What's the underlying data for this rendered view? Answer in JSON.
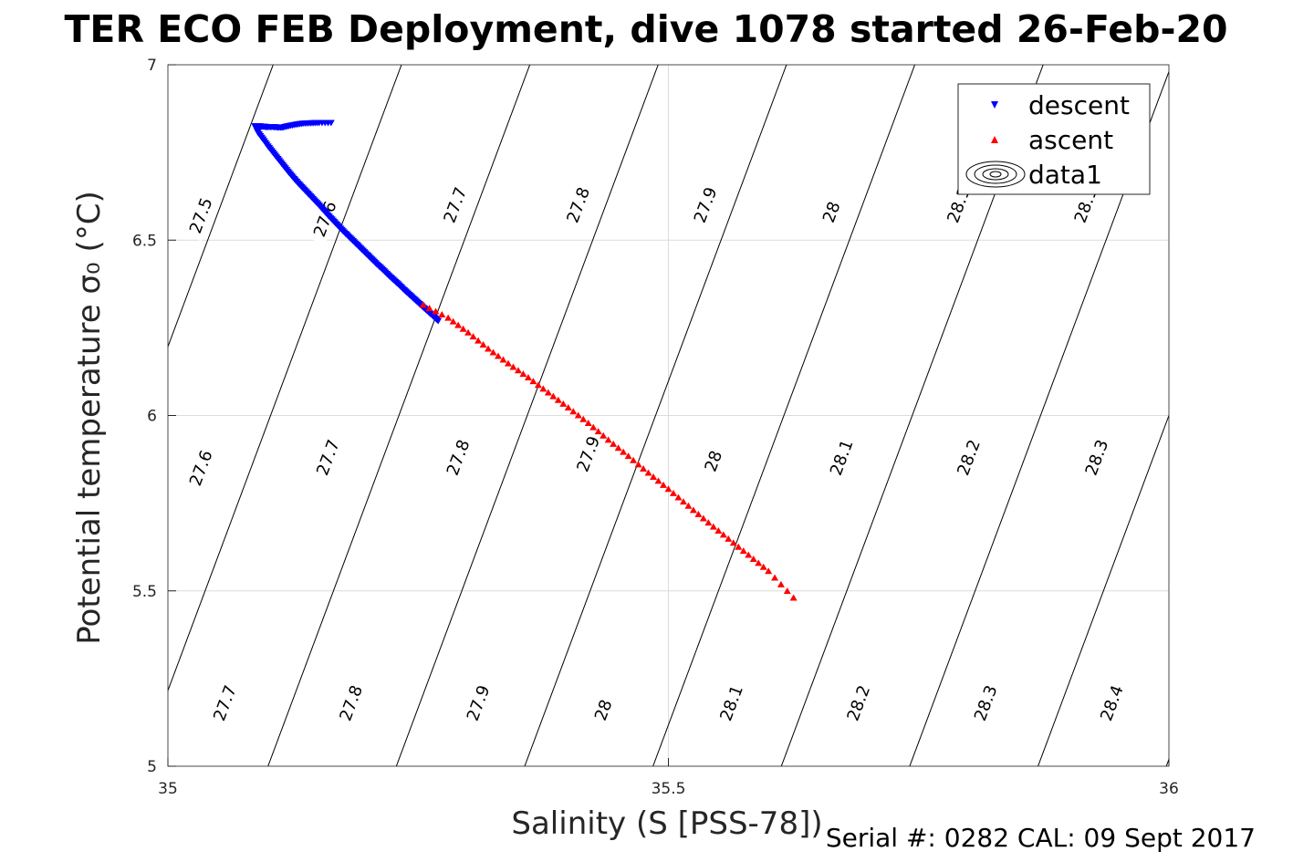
{
  "chart_data": {
    "type": "scatter",
    "title": "TER ECO FEB Deployment, dive 1078 started 26-Feb-20",
    "xlabel": "Salinity (S [PSS-78])",
    "ylabel": "Potential temperature σ₀ (°C)",
    "xlim": [
      35,
      36
    ],
    "ylim": [
      5,
      7
    ],
    "xticks": [
      "35",
      "35.5",
      "36"
    ],
    "yticks": [
      "5",
      "5.5",
      "6",
      "6.5",
      "7"
    ],
    "grid": true,
    "legend_position": "top-right",
    "legend": [
      "descent",
      "ascent",
      "data1"
    ],
    "series": [
      {
        "name": "descent",
        "marker": "triangle-down",
        "color": "#0000ff",
        "x": [
          35.163,
          35.151,
          35.143,
          35.135,
          35.128,
          35.121,
          35.115,
          35.11,
          35.105,
          35.1,
          35.096,
          35.092,
          35.089,
          35.087,
          35.088,
          35.09,
          35.095,
          35.1,
          35.105,
          35.11,
          35.115,
          35.12,
          35.125,
          35.13,
          35.135,
          35.14,
          35.145,
          35.15,
          35.155,
          35.16,
          35.165,
          35.17,
          35.175,
          35.18,
          35.185,
          35.19,
          35.195,
          35.2,
          35.205,
          35.21,
          35.215,
          35.22,
          35.225,
          35.23,
          35.235,
          35.24,
          35.245,
          35.25,
          35.255,
          35.26,
          35.265,
          35.27
        ],
        "y": [
          6.835,
          6.835,
          6.834,
          6.833,
          6.83,
          6.826,
          6.822,
          6.822,
          6.823,
          6.823,
          6.824,
          6.825,
          6.825,
          6.825,
          6.82,
          6.807,
          6.788,
          6.768,
          6.75,
          6.732,
          6.714,
          6.696,
          6.679,
          6.663,
          6.648,
          6.633,
          6.618,
          6.603,
          6.587,
          6.571,
          6.556,
          6.541,
          6.526,
          6.512,
          6.498,
          6.484,
          6.47,
          6.456,
          6.442,
          6.428,
          6.415,
          6.401,
          6.388,
          6.375,
          6.361,
          6.348,
          6.335,
          6.322,
          6.309,
          6.296,
          6.283,
          6.27
        ]
      },
      {
        "name": "ascent",
        "marker": "triangle-up",
        "color": "#ff0000",
        "x": [
          35.255,
          35.28,
          35.3,
          35.32,
          35.34,
          35.36,
          35.38,
          35.4,
          35.42,
          35.44,
          35.46,
          35.48,
          35.5,
          35.52,
          35.54,
          35.56,
          35.58,
          35.6,
          35.625
        ],
        "y": [
          6.315,
          6.278,
          6.236,
          6.19,
          6.148,
          6.108,
          6.065,
          6.022,
          5.978,
          5.93,
          5.884,
          5.836,
          5.79,
          5.742,
          5.694,
          5.648,
          5.602,
          5.556,
          5.48
        ]
      }
    ],
    "contours": {
      "name": "data1",
      "levels": [
        27.5,
        27.6,
        27.7,
        27.8,
        27.9,
        28.0,
        28.1,
        28.2,
        28.3,
        28.4
      ],
      "labels": [
        {
          "text": "27.5",
          "s": 35.033,
          "t": 6.57
        },
        {
          "text": "27.6",
          "s": 35.157,
          "t": 6.56
        },
        {
          "text": "27.7",
          "s": 35.287,
          "t": 6.6
        },
        {
          "text": "27.8",
          "s": 35.41,
          "t": 6.6
        },
        {
          "text": "27.9",
          "s": 35.537,
          "t": 6.6
        },
        {
          "text": "28",
          "s": 35.663,
          "t": 6.58
        },
        {
          "text": "28.1",
          "s": 35.79,
          "t": 6.6
        },
        {
          "text": "28.1",
          "s": 35.917,
          "t": 6.6
        },
        {
          "text": "27.6",
          "s": 35.033,
          "t": 5.85
        },
        {
          "text": "27.7",
          "s": 35.16,
          "t": 5.88
        },
        {
          "text": "27.8",
          "s": 35.29,
          "t": 5.88
        },
        {
          "text": "27.9",
          "s": 35.42,
          "t": 5.89
        },
        {
          "text": "28",
          "s": 35.545,
          "t": 5.87
        },
        {
          "text": "28.1",
          "s": 35.673,
          "t": 5.88
        },
        {
          "text": "28.2",
          "s": 35.8,
          "t": 5.88
        },
        {
          "text": "28.3",
          "s": 35.928,
          "t": 5.88
        },
        {
          "text": "27.7",
          "s": 35.057,
          "t": 5.18
        },
        {
          "text": "27.8",
          "s": 35.183,
          "t": 5.18
        },
        {
          "text": "27.9",
          "s": 35.31,
          "t": 5.18
        },
        {
          "text": "28",
          "s": 35.435,
          "t": 5.16
        },
        {
          "text": "28.1",
          "s": 35.563,
          "t": 5.18
        },
        {
          "text": "28.2",
          "s": 35.69,
          "t": 5.18
        },
        {
          "text": "28.3",
          "s": 35.817,
          "t": 5.18
        },
        {
          "text": "28.4",
          "s": 35.943,
          "t": 5.18
        }
      ]
    }
  },
  "footer": "Serial #: 0282  CAL: 09 Sept 2017"
}
